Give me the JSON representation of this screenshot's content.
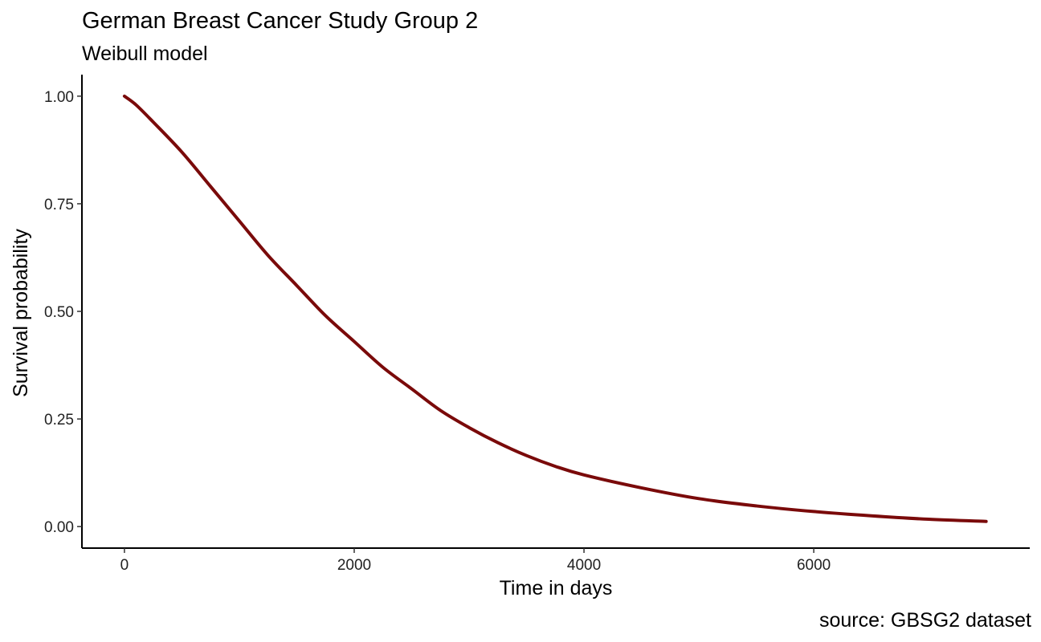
{
  "chart_data": {
    "type": "line",
    "title": "German Breast Cancer Study Group 2",
    "subtitle": "Weibull model",
    "caption": "source: GBSG2 dataset",
    "xlabel": "Time in days",
    "ylabel": "Survival probability",
    "xlim": [
      -370,
      7880
    ],
    "ylim": [
      -0.05,
      1.05
    ],
    "x_ticks": [
      0,
      2000,
      4000,
      6000
    ],
    "x_tick_labels": [
      "0",
      "2000",
      "4000",
      "6000"
    ],
    "y_ticks": [
      0,
      0.25,
      0.5,
      0.75,
      1.0
    ],
    "y_tick_labels": [
      "0.00",
      "0.25",
      "0.50",
      "0.75",
      "1.00"
    ],
    "grid": false,
    "legend": "none",
    "line_color": "#7a0a0a",
    "series": [
      {
        "x": [
          0,
          100,
          250,
          500,
          750,
          1000,
          1250,
          1500,
          1750,
          2000,
          2250,
          2500,
          2750,
          3000,
          3250,
          3500,
          3750,
          4000,
          4500,
          5000,
          5500,
          6000,
          6500,
          7000,
          7500
        ],
        "values": [
          1.0,
          0.98,
          0.94,
          0.87,
          0.79,
          0.71,
          0.63,
          0.56,
          0.49,
          0.43,
          0.37,
          0.32,
          0.27,
          0.23,
          0.195,
          0.165,
          0.14,
          0.12,
          0.09,
          0.065,
          0.048,
          0.035,
          0.025,
          0.017,
          0.012
        ]
      }
    ]
  }
}
